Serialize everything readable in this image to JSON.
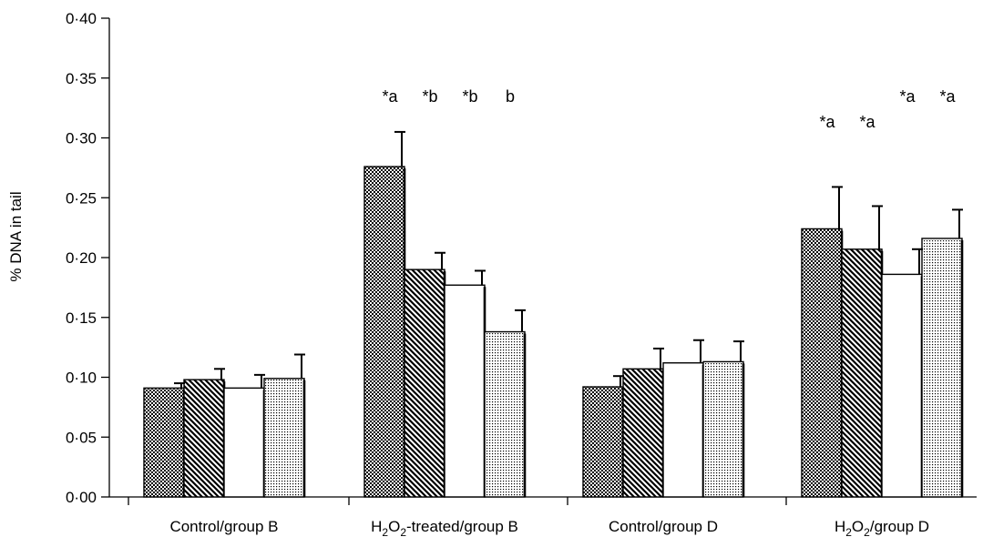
{
  "chart_data": {
    "type": "bar",
    "ylabel": "% DNA in tail",
    "xlabel": "",
    "ylim": [
      0,
      0.4
    ],
    "grid": false,
    "yticks": [
      "0·00",
      "0·05",
      "0·10",
      "0·15",
      "0·20",
      "0·25",
      "0·30",
      "0·35",
      "0·40"
    ],
    "categories": [
      {
        "pre": "Control/group B",
        "sub": "",
        "mid": "",
        "sub2": "",
        "post": ""
      },
      {
        "pre": "H",
        "sub": "2",
        "mid": "O",
        "sub2": "2",
        "post": "-treated/group B"
      },
      {
        "pre": "Control/group D",
        "sub": "",
        "mid": "",
        "sub2": "",
        "post": ""
      },
      {
        "pre": "H",
        "sub": "2",
        "mid": "O",
        "sub2": "2",
        "post": "/group D"
      }
    ],
    "series": [
      {
        "pattern": "checker",
        "values": [
          0.091,
          0.276,
          0.092,
          0.224
        ],
        "errors": [
          0.004,
          0.029,
          0.009,
          0.035
        ],
        "annotations": [
          "",
          "*a",
          "",
          "*a"
        ]
      },
      {
        "pattern": "diagonal",
        "values": [
          0.098,
          0.19,
          0.107,
          0.207
        ],
        "errors": [
          0.009,
          0.014,
          0.017,
          0.036
        ],
        "annotations": [
          "",
          "*b",
          "",
          "*a"
        ]
      },
      {
        "pattern": "blank",
        "values": [
          0.091,
          0.177,
          0.112,
          0.186
        ],
        "errors": [
          0.011,
          0.012,
          0.019,
          0.021
        ],
        "annotations": [
          "",
          "*b",
          "",
          "*a"
        ]
      },
      {
        "pattern": "dots",
        "values": [
          0.099,
          0.138,
          0.113,
          0.216
        ],
        "errors": [
          0.02,
          0.018,
          0.017,
          0.024
        ],
        "annotations": [
          "",
          "b",
          "",
          "*a"
        ]
      }
    ]
  }
}
